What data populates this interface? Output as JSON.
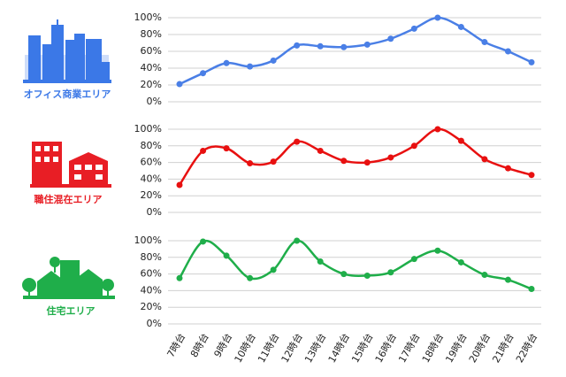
{
  "chart_data": [
    {
      "type": "line",
      "title": "オフィス商業エリア",
      "color": "#4a7fe6",
      "values": [
        21,
        34,
        46,
        42,
        49,
        67,
        66,
        65,
        68,
        75,
        87,
        100,
        89,
        71,
        60,
        47
      ],
      "ylim": [
        0,
        100
      ],
      "yticks": [
        {
          "value": 0,
          "label": "0%"
        },
        {
          "value": 20,
          "label": "20%"
        },
        {
          "value": 40,
          "label": "40%"
        },
        {
          "value": 60,
          "label": "60%"
        },
        {
          "value": 80,
          "label": "80%"
        },
        {
          "value": 100,
          "label": "100%"
        }
      ],
      "grid": true
    },
    {
      "type": "line",
      "title": "職住混在エリア",
      "color": "#e81010",
      "values": [
        33,
        74,
        77,
        59,
        61,
        85,
        74,
        62,
        60,
        66,
        80,
        100,
        86,
        64,
        53,
        45
      ],
      "ylim": [
        0,
        100
      ],
      "yticks": [
        {
          "value": 0,
          "label": "0%"
        },
        {
          "value": 20,
          "label": "20%"
        },
        {
          "value": 40,
          "label": "40%"
        },
        {
          "value": 60,
          "label": "60%"
        },
        {
          "value": 80,
          "label": "80%"
        },
        {
          "value": 100,
          "label": "100%"
        }
      ],
      "grid": true
    },
    {
      "type": "line",
      "title": "住宅エリア",
      "color": "#1fae4a",
      "categories": [
        "7時台",
        "8時台",
        "9時台",
        "10時台",
        "11時台",
        "12時台",
        "13時台",
        "14時台",
        "15時台",
        "16時台",
        "17時台",
        "18時台",
        "19時台",
        "20時台",
        "21時台",
        "22時台"
      ],
      "values": [
        55,
        99,
        82,
        55,
        65,
        100,
        75,
        60,
        58,
        62,
        78,
        88,
        74,
        59,
        53,
        42
      ],
      "ylim": [
        0,
        100
      ],
      "yticks": [
        {
          "value": 0,
          "label": "0%"
        },
        {
          "value": 20,
          "label": "20%"
        },
        {
          "value": 40,
          "label": "40%"
        },
        {
          "value": 60,
          "label": "60%"
        },
        {
          "value": 80,
          "label": "80%"
        },
        {
          "value": 100,
          "label": "100%"
        }
      ],
      "grid": true
    }
  ]
}
